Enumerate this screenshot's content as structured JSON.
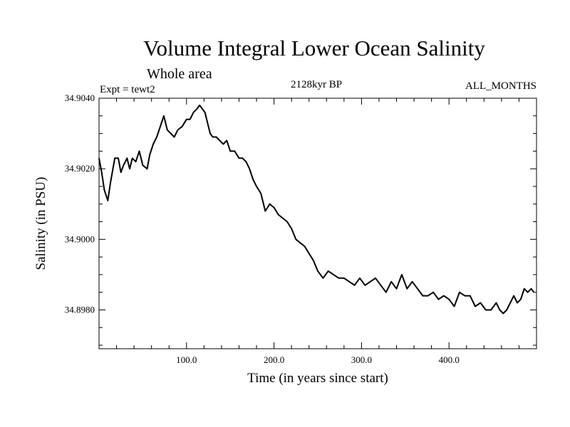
{
  "chart_data": {
    "type": "line",
    "title": "Volume Integral Lower Ocean Salinity",
    "subtitle": "Whole area",
    "left_label": "Expt = tewt2",
    "center_label": "2128kyr BP",
    "right_label": "ALL_MONTHS",
    "xlabel": "Time (in years since start)",
    "ylabel": "Salinity (in PSU)",
    "xlim": [
      0,
      500
    ],
    "ylim": [
      34.8969,
      34.904
    ],
    "x_ticks": [
      {
        "value": 100,
        "label": "100.0"
      },
      {
        "value": 200,
        "label": "200.0"
      },
      {
        "value": 300,
        "label": "300.0"
      },
      {
        "value": 400,
        "label": "400.0"
      }
    ],
    "y_ticks": [
      {
        "value": 34.898,
        "label": "34.8980"
      },
      {
        "value": 34.9,
        "label": "34.9000"
      },
      {
        "value": 34.902,
        "label": "34.9020"
      },
      {
        "value": 34.904,
        "label": "34.9040"
      }
    ],
    "series": [
      {
        "name": "Salinity",
        "color": "#000000",
        "x": [
          0,
          3,
          6,
          10,
          13,
          18,
          22,
          25,
          28,
          32,
          35,
          38,
          42,
          46,
          50,
          55,
          58,
          62,
          66,
          70,
          74,
          78,
          82,
          86,
          90,
          95,
          100,
          104,
          108,
          112,
          115,
          118,
          121,
          124,
          127,
          130,
          134,
          138,
          142,
          146,
          150,
          155,
          160,
          164,
          168,
          172,
          176,
          180,
          185,
          190,
          195,
          200,
          205,
          210,
          215,
          220,
          225,
          230,
          235,
          240,
          245,
          250,
          256,
          262,
          268,
          274,
          280,
          286,
          292,
          298,
          304,
          310,
          316,
          322,
          328,
          334,
          340,
          346,
          352,
          358,
          364,
          370,
          376,
          382,
          388,
          394,
          400,
          406,
          412,
          418,
          424,
          430,
          436,
          442,
          448,
          454,
          458,
          462,
          466,
          470,
          474,
          478,
          482,
          486,
          490,
          494,
          497
        ],
        "y": [
          34.9023,
          34.9019,
          34.9014,
          34.9011,
          34.9016,
          34.9023,
          34.9023,
          34.9019,
          34.9021,
          34.9023,
          34.902,
          34.9023,
          34.9022,
          34.9025,
          34.9021,
          34.902,
          34.9024,
          34.9027,
          34.9029,
          34.9032,
          34.9035,
          34.9031,
          34.903,
          34.9029,
          34.9031,
          34.9032,
          34.9034,
          34.9034,
          34.9036,
          34.9037,
          34.9038,
          34.9037,
          34.9036,
          34.9033,
          34.903,
          34.9029,
          34.9029,
          34.9028,
          34.9027,
          34.9028,
          34.9025,
          34.9025,
          34.9023,
          34.9023,
          34.9022,
          34.902,
          34.9017,
          34.9015,
          34.9013,
          34.9008,
          34.901,
          34.9009,
          34.9007,
          34.9006,
          34.9005,
          34.9003,
          34.9,
          34.8999,
          34.8998,
          34.8996,
          34.8994,
          34.8991,
          34.8989,
          34.8991,
          34.899,
          34.8989,
          34.8989,
          34.8988,
          34.8987,
          34.8989,
          34.8987,
          34.8988,
          34.8989,
          34.8987,
          34.8985,
          34.8988,
          34.8986,
          34.899,
          34.8986,
          34.8988,
          34.8986,
          34.8984,
          34.8984,
          34.8985,
          34.8983,
          34.8984,
          34.8983,
          34.8981,
          34.8985,
          34.8984,
          34.8984,
          34.8981,
          34.8982,
          34.898,
          34.898,
          34.8982,
          34.898,
          34.8979,
          34.898,
          34.8982,
          34.8984,
          34.8982,
          34.8983,
          34.8986,
          34.8985,
          34.8986,
          34.8985
        ]
      }
    ]
  }
}
